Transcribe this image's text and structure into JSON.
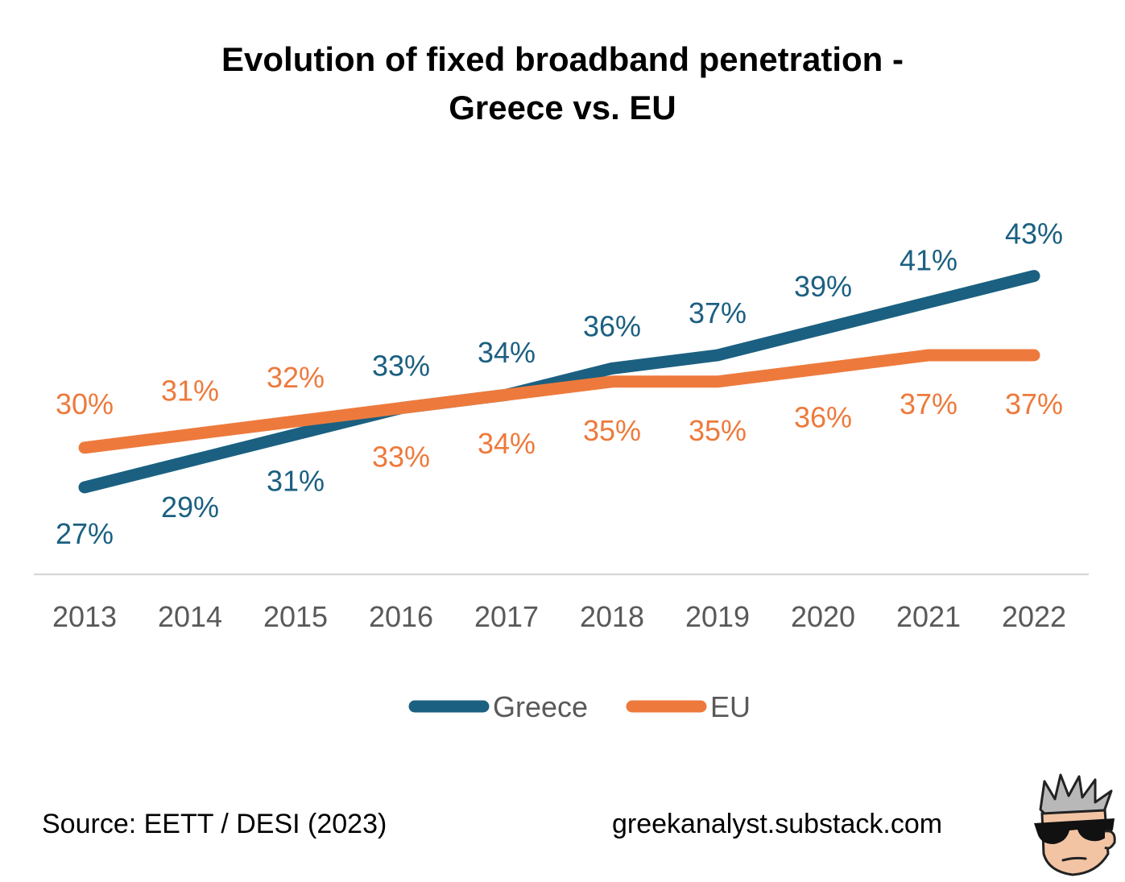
{
  "title_line1": "Evolution of fixed broadband penetration -",
  "title_line2": "Greece vs. EU",
  "source_text": "Source: EETT / DESI (2023)",
  "site_text": "greekanalyst.substack.com",
  "colors": {
    "greece": "#1b6081",
    "eu": "#ed7a3c",
    "axis_text": "#595959",
    "axis_line": "#d9d9d9"
  },
  "mascot_icon": "sunglasses-mascot-icon",
  "chart_data": {
    "type": "line",
    "categories": [
      "2013",
      "2014",
      "2015",
      "2016",
      "2017",
      "2018",
      "2019",
      "2020",
      "2021",
      "2022"
    ],
    "series": [
      {
        "name": "Greece",
        "values": [
          27,
          29,
          31,
          33,
          34,
          36,
          37,
          39,
          41,
          43
        ],
        "labels": [
          "27%",
          "29%",
          "31%",
          "33%",
          "34%",
          "36%",
          "37%",
          "39%",
          "41%",
          "43%"
        ]
      },
      {
        "name": "EU",
        "values": [
          30,
          31,
          32,
          33,
          34,
          35,
          35,
          36,
          37,
          37
        ],
        "labels": [
          "30%",
          "31%",
          "32%",
          "33%",
          "34%",
          "35%",
          "35%",
          "36%",
          "37%",
          "37%"
        ]
      }
    ],
    "legend": "bottom-center",
    "grid": false
  }
}
